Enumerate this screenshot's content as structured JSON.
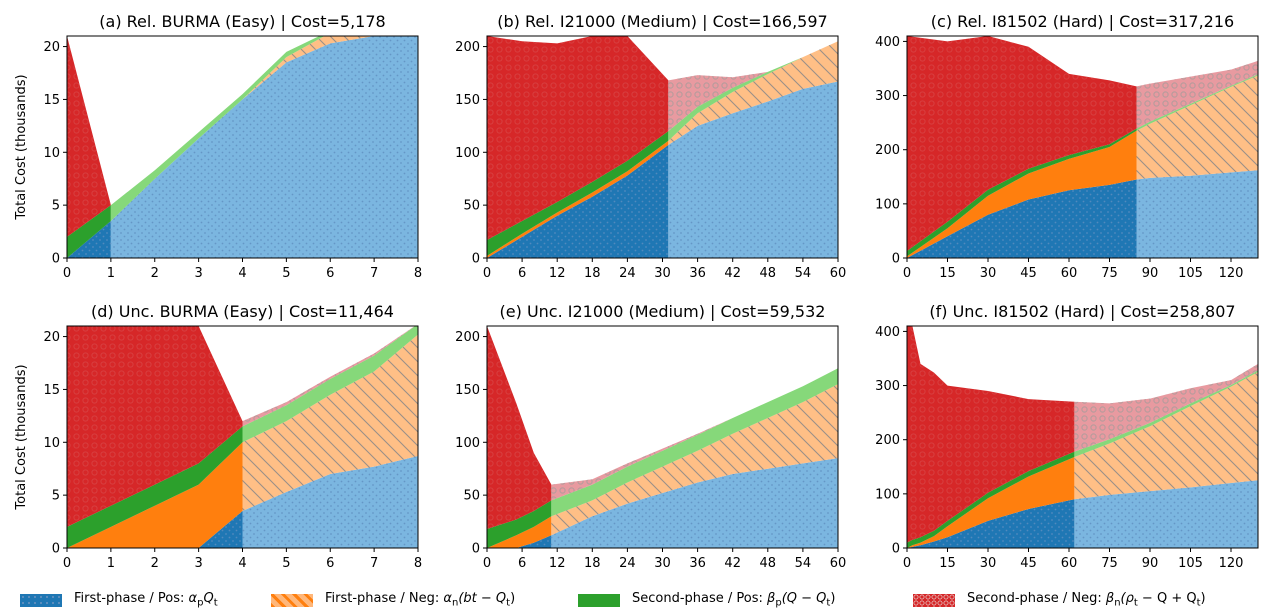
{
  "colors": {
    "first_pos": "#1f77b4",
    "first_neg": "#ff7f0e",
    "second_pos": "#2ca02c",
    "second_neg": "#d62728"
  },
  "legend": [
    {
      "key": "first_pos",
      "label_pre": "First-phase / Pos: ",
      "label_math": "α",
      "sub": "p",
      "label_post": "Q",
      "sub2": "t",
      "tail": ""
    },
    {
      "key": "first_neg",
      "label_pre": "First-phase / Neg: ",
      "label_math": "α",
      "sub": "n",
      "label_post": "(bt − Q",
      "sub2": "t",
      "tail": ")"
    },
    {
      "key": "second_pos",
      "label_pre": "Second-phase / Pos: ",
      "label_math": "β",
      "sub": "p",
      "label_post": "(Q − Q",
      "sub2": "t",
      "tail": ")"
    },
    {
      "key": "second_neg",
      "label_pre": "Second-phase / Neg: ",
      "label_math": "β",
      "sub": "n",
      "label_post": "(ρ",
      "sub2": "t",
      "tail": " − Q + Q"
    }
  ],
  "ylabel": "Total Cost (thousands)",
  "chart_data": [
    {
      "type": "area",
      "title": "(a) Rel. BURMA (Easy) | Cost=5,178",
      "xlim": [
        0,
        8
      ],
      "ylim": [
        0,
        21
      ],
      "xticks": [
        0,
        1,
        2,
        3,
        4,
        5,
        6,
        7,
        8
      ],
      "yticks": [
        0,
        5,
        10,
        15,
        20
      ],
      "split": 1,
      "x": [
        0,
        1,
        2,
        3,
        4,
        5,
        6,
        7,
        8
      ],
      "series": [
        {
          "key": "first_pos",
          "values": [
            0,
            3.5,
            7.5,
            11.3,
            15,
            18.5,
            20.3,
            21,
            21
          ]
        },
        {
          "key": "first_neg",
          "values": [
            0,
            0,
            0,
            0,
            0,
            0.5,
            1.0,
            0.5,
            0
          ]
        },
        {
          "key": "second_pos",
          "values": [
            2,
            1.5,
            0.8,
            0.6,
            0.5,
            0.5,
            0.2,
            0,
            0
          ]
        },
        {
          "key": "second_neg",
          "values": [
            19,
            0,
            0,
            0,
            0,
            0,
            0,
            0,
            0
          ]
        }
      ]
    },
    {
      "type": "area",
      "title": "(b) Rel. I21000 (Medium) | Cost=166,597",
      "xlim": [
        0,
        60
      ],
      "ylim": [
        0,
        210
      ],
      "xticks": [
        0,
        6,
        12,
        18,
        24,
        30,
        36,
        42,
        48,
        54,
        60
      ],
      "yticks": [
        0,
        50,
        100,
        150,
        200
      ],
      "split": 31,
      "x": [
        0,
        6,
        12,
        18,
        24,
        31,
        36,
        42,
        48,
        54,
        60
      ],
      "series": [
        {
          "key": "first_pos",
          "values": [
            0,
            20,
            40,
            58,
            78,
            107,
            125,
            137,
            148,
            160,
            167
          ]
        },
        {
          "key": "first_neg",
          "values": [
            2,
            3,
            3,
            4,
            4,
            4,
            12,
            20,
            26,
            30,
            38
          ]
        },
        {
          "key": "second_pos",
          "values": [
            15,
            12,
            10,
            10,
            10,
            9,
            6,
            4,
            2,
            0,
            0
          ]
        },
        {
          "key": "second_neg",
          "values": [
            193,
            170,
            150,
            138,
            118,
            48,
            30,
            10,
            0,
            0,
            0
          ]
        }
      ]
    },
    {
      "type": "area",
      "title": "(c) Rel. I81502 (Hard) | Cost=317,216",
      "xlim": [
        0,
        130
      ],
      "ylim": [
        0,
        410
      ],
      "xticks": [
        0,
        15,
        30,
        45,
        60,
        75,
        90,
        105,
        120
      ],
      "yticks": [
        0,
        100,
        200,
        300,
        400
      ],
      "split": 85,
      "x": [
        0,
        15,
        30,
        45,
        60,
        75,
        85,
        90,
        105,
        120,
        130
      ],
      "series": [
        {
          "key": "first_pos",
          "values": [
            0,
            40,
            80,
            108,
            125,
            135,
            145,
            148,
            152,
            158,
            162
          ]
        },
        {
          "key": "first_neg",
          "values": [
            3,
            15,
            35,
            48,
            58,
            70,
            90,
            100,
            130,
            158,
            175
          ]
        },
        {
          "key": "second_pos",
          "values": [
            10,
            12,
            11,
            9,
            7,
            5,
            4,
            4,
            3,
            2,
            2
          ]
        },
        {
          "key": "second_neg",
          "values": [
            397,
            333,
            284,
            225,
            150,
            118,
            78,
            70,
            50,
            30,
            25
          ]
        }
      ]
    },
    {
      "type": "area",
      "title": "(d) Unc. BURMA (Easy) | Cost=11,464",
      "xlim": [
        0,
        8
      ],
      "ylim": [
        0,
        21
      ],
      "xticks": [
        0,
        1,
        2,
        3,
        4,
        5,
        6,
        7,
        8
      ],
      "yticks": [
        0,
        5,
        10,
        15,
        20
      ],
      "split": 4,
      "x": [
        0,
        1,
        2,
        3,
        4,
        5,
        6,
        7,
        8
      ],
      "series": [
        {
          "key": "first_pos",
          "values": [
            0,
            0,
            0,
            0,
            3.5,
            5.3,
            7.0,
            7.7,
            8.7
          ]
        },
        {
          "key": "first_neg",
          "values": [
            0,
            2,
            4,
            6,
            6.5,
            6.7,
            7.5,
            9.0,
            11.5
          ]
        },
        {
          "key": "second_pos",
          "values": [
            2,
            2,
            2,
            2,
            1.5,
            1.5,
            1.5,
            1.5,
            1.0
          ]
        },
        {
          "key": "second_neg",
          "values": [
            19,
            17,
            15,
            13,
            0.5,
            0.3,
            0.2,
            0.2,
            0
          ]
        }
      ]
    },
    {
      "type": "area",
      "title": "(e) Unc. I21000 (Medium) | Cost=59,532",
      "xlim": [
        0,
        60
      ],
      "ylim": [
        0,
        210
      ],
      "xticks": [
        0,
        6,
        12,
        18,
        24,
        30,
        36,
        42,
        48,
        54,
        60
      ],
      "yticks": [
        0,
        50,
        100,
        150,
        200
      ],
      "split": 11,
      "x": [
        0,
        5,
        8,
        11,
        18,
        24,
        30,
        36,
        42,
        48,
        54,
        60
      ],
      "series": [
        {
          "key": "first_pos",
          "values": [
            0,
            0,
            5,
            12,
            30,
            42,
            52,
            62,
            70,
            75,
            80,
            85
          ]
        },
        {
          "key": "first_neg",
          "values": [
            0,
            12,
            15,
            18,
            15,
            20,
            25,
            30,
            38,
            48,
            58,
            70
          ]
        },
        {
          "key": "second_pos",
          "values": [
            18,
            15,
            15,
            15,
            15,
            15,
            15,
            15,
            15,
            15,
            15,
            15
          ]
        },
        {
          "key": "second_neg",
          "values": [
            192,
            110,
            55,
            15,
            5,
            3,
            2,
            1,
            0,
            0,
            0,
            0
          ]
        }
      ]
    },
    {
      "type": "area",
      "title": "(f) Unc. I81502 (Hard) | Cost=258,807",
      "xlim": [
        0,
        130
      ],
      "ylim": [
        0,
        410
      ],
      "xticks": [
        0,
        15,
        30,
        45,
        60,
        75,
        90,
        105,
        120
      ],
      "yticks": [
        0,
        100,
        200,
        300,
        400
      ],
      "split": 62,
      "x": [
        0,
        2,
        5,
        10,
        15,
        30,
        45,
        62,
        75,
        90,
        105,
        120,
        130
      ],
      "series": [
        {
          "key": "first_pos",
          "values": [
            0,
            2,
            5,
            12,
            20,
            50,
            72,
            90,
            98,
            105,
            112,
            120,
            125
          ]
        },
        {
          "key": "first_neg",
          "values": [
            0,
            3,
            5,
            10,
            20,
            42,
            60,
            78,
            95,
            120,
            150,
            178,
            200
          ]
        },
        {
          "key": "second_pos",
          "values": [
            10,
            10,
            10,
            10,
            10,
            10,
            10,
            10,
            8,
            6,
            5,
            3,
            3
          ]
        },
        {
          "key": "second_neg",
          "values": [
            400,
            395,
            320,
            292,
            250,
            188,
            133,
            92,
            66,
            45,
            28,
            9,
            12
          ]
        }
      ]
    }
  ]
}
